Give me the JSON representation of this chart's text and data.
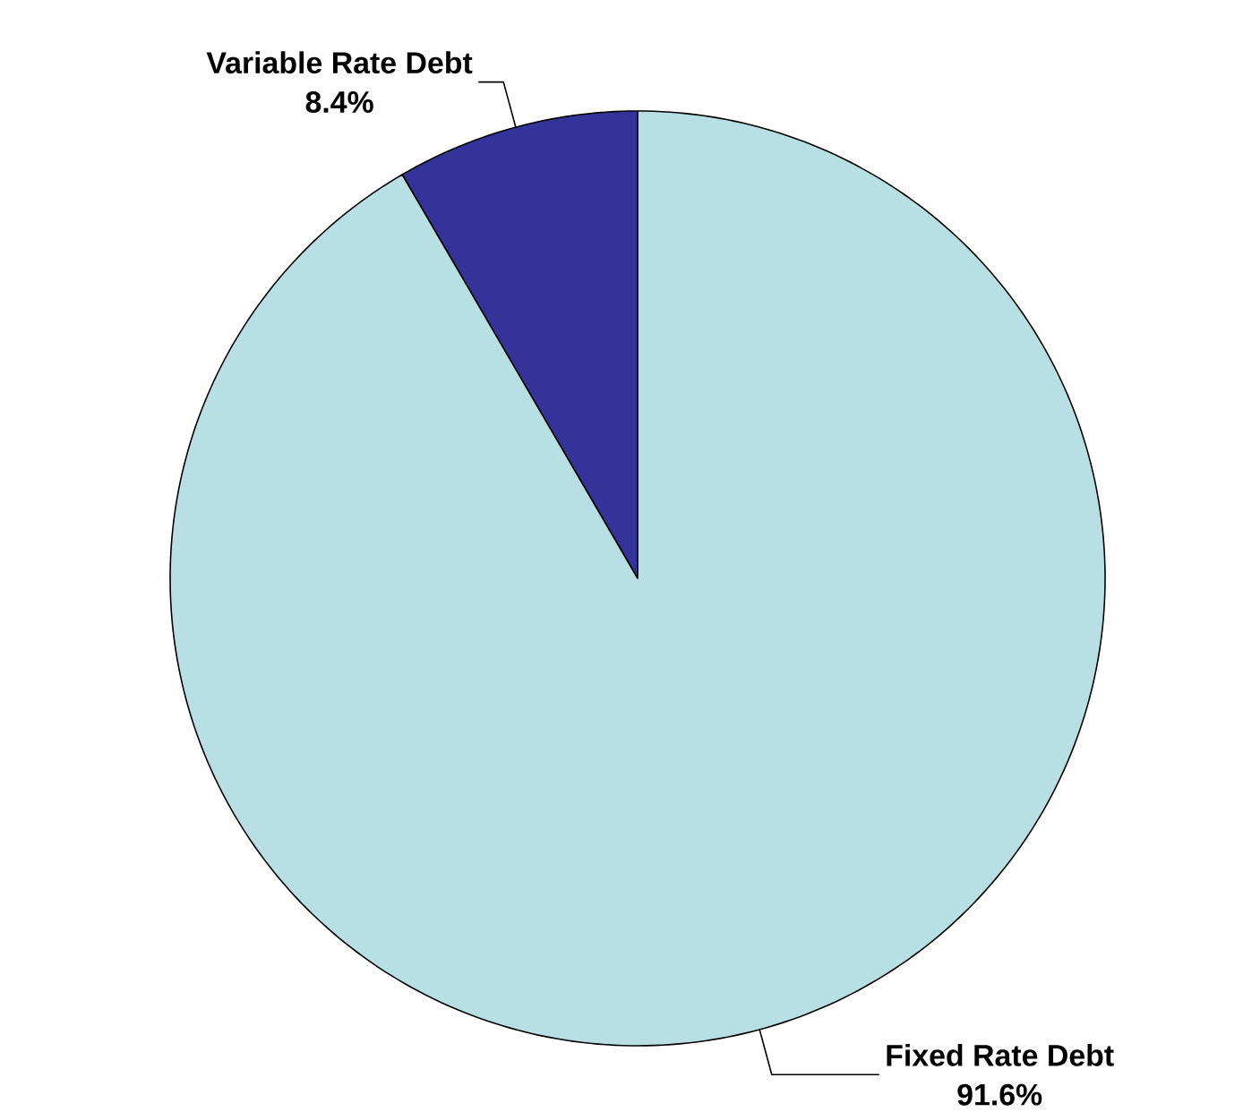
{
  "chart_data": {
    "type": "pie",
    "categories": [
      "Variable Rate Debt",
      "Fixed Rate Debt"
    ],
    "values": [
      8.4,
      91.6
    ],
    "value_labels": [
      "8.4%",
      "91.6%"
    ],
    "colors": [
      "#333399",
      "#b8e0e4"
    ]
  }
}
